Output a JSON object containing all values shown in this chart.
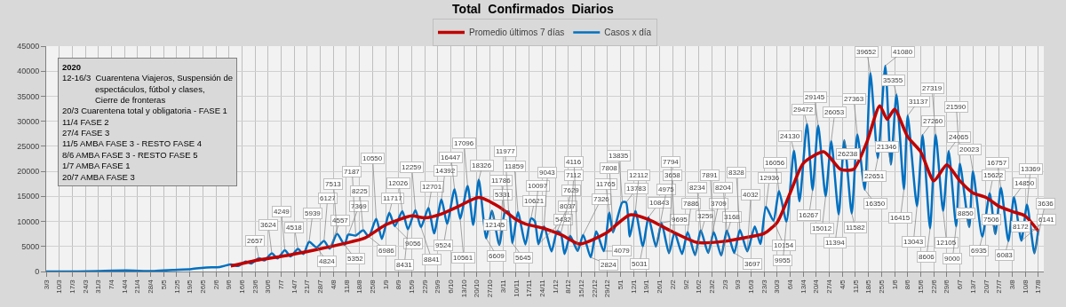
{
  "chart_data": {
    "type": "line",
    "title": "Total  Confirmados  Diarios",
    "annotations": [
      "2020\n12-16/3  Cuarentena Viajeros, Suspensión de\n              espectáculos, fútbol y clases,\n              Cierre de fronteras\n20/3 Cuarentena total y obligatoria - FASE 1\n11/4 FASE 2\n27/4 FASE 3\n11/5 AMBA FASE 3 - RESTO FASE 4\n8/6 AMBA FASE 3 - RESTO FASE 5\n1/7 AMBA FASE 1\n20/7 AMBA FASE 3"
    ],
    "series": [
      {
        "name": "Promedio últimos 7 días",
        "color": "#c00000",
        "x": [
          "2020-06-10",
          "2020-06-25",
          "2020-07-10",
          "2020-07-25",
          "2020-08-10",
          "2020-08-21",
          "2020-09-01",
          "2020-09-15",
          "2020-09-22",
          "2020-10-01",
          "2020-10-10",
          "2020-10-21",
          "2020-11-01",
          "2020-11-10",
          "2020-11-15",
          "2020-11-25",
          "2020-12-05",
          "2020-12-14",
          "2020-12-28",
          "2021-01-10",
          "2021-01-20",
          "2021-02-01",
          "2021-02-15",
          "2021-03-01",
          "2021-03-15",
          "2021-03-23",
          "2021-03-30",
          "2021-04-06",
          "2021-04-13",
          "2021-04-24",
          "2021-05-03",
          "2021-05-10",
          "2021-05-17",
          "2021-05-24",
          "2021-05-28",
          "2021-06-01",
          "2021-06-08",
          "2021-06-15",
          "2021-06-22",
          "2021-06-29",
          "2021-07-06",
          "2021-07-13",
          "2021-07-20",
          "2021-07-27",
          "2021-08-03",
          "2021-08-10",
          "2021-08-17"
        ],
        "values": [
          1100,
          2300,
          3200,
          4300,
          5600,
          6700,
          9300,
          11100,
          10700,
          11500,
          13000,
          14800,
          12900,
          10400,
          9500,
          8600,
          7200,
          5500,
          7600,
          11300,
          10400,
          8100,
          5800,
          6000,
          6900,
          7600,
          9800,
          15700,
          21600,
          23900,
          20400,
          20400,
          25700,
          33100,
          30400,
          32400,
          26900,
          23900,
          18100,
          21300,
          18100,
          15700,
          14800,
          13000,
          12000,
          11100,
          8100
        ]
      },
      {
        "name": "Casos x día",
        "color": "#0070c0",
        "x": [
          "2020-03-03",
          "2020-03-20",
          "2020-04-01",
          "2020-04-15",
          "2020-04-30",
          "2020-05-10",
          "2020-05-20",
          "2020-05-28",
          "2020-06-04",
          "2020-06-10",
          "2020-06-14",
          "2020-06-18",
          "2020-06-21",
          "2020-06-25",
          "2020-06-28",
          "2020-07-02",
          "2020-07-05",
          "2020-07-09",
          "2020-07-12",
          "2020-07-16",
          "2020-07-19",
          "2020-07-22",
          "2020-07-26",
          "2020-07-30",
          "2020-08-02",
          "2020-08-06",
          "2020-08-10",
          "2020-08-12",
          "2020-08-16",
          "2020-08-20",
          "2020-08-23",
          "2020-08-27",
          "2020-08-30",
          "2020-09-03",
          "2020-09-06",
          "2020-09-10",
          "2020-09-13",
          "2020-09-17",
          "2020-09-20",
          "2020-09-24",
          "2020-09-27",
          "2020-10-01",
          "2020-10-04",
          "2020-10-08",
          "2020-10-11",
          "2020-10-15",
          "2020-10-18",
          "2020-10-21",
          "2020-10-25",
          "2020-10-28",
          "2020-11-01",
          "2020-11-04",
          "2020-11-06",
          "2020-11-08",
          "2020-11-11",
          "2020-11-15",
          "2020-11-18",
          "2020-11-20",
          "2020-11-22",
          "2020-11-25",
          "2020-11-29",
          "2020-12-02",
          "2020-12-04",
          "2020-12-06",
          "2020-12-09",
          "2020-12-13",
          "2020-12-16",
          "2020-12-20",
          "2020-12-23",
          "2020-12-27",
          "2020-12-30",
          "2021-01-01",
          "2021-01-06",
          "2021-01-08",
          "2021-01-10",
          "2021-01-13",
          "2021-01-17",
          "2021-01-20",
          "2021-01-24",
          "2021-01-27",
          "2021-01-31",
          "2021-02-03",
          "2021-02-07",
          "2021-02-10",
          "2021-02-14",
          "2021-02-17",
          "2021-02-21",
          "2021-02-24",
          "2021-02-28",
          "2021-03-03",
          "2021-03-07",
          "2021-03-10",
          "2021-03-14",
          "2021-03-18",
          "2021-03-21",
          "2021-03-24",
          "2021-03-28",
          "2021-03-31",
          "2021-04-04",
          "2021-04-08",
          "2021-04-11",
          "2021-04-15",
          "2021-04-18",
          "2021-04-21",
          "2021-04-25",
          "2021-04-28",
          "2021-05-02",
          "2021-05-05",
          "2021-05-09",
          "2021-05-12",
          "2021-05-16",
          "2021-05-19",
          "2021-05-23",
          "2021-05-27",
          "2021-05-30",
          "2021-06-02",
          "2021-06-06",
          "2021-06-08",
          "2021-06-13",
          "2021-06-16",
          "2021-06-20",
          "2021-06-23",
          "2021-06-27",
          "2021-06-30",
          "2021-07-04",
          "2021-07-06",
          "2021-07-11",
          "2021-07-13",
          "2021-07-18",
          "2021-07-22",
          "2021-07-25",
          "2021-07-28",
          "2021-08-01",
          "2021-08-04",
          "2021-08-08",
          "2021-08-11",
          "2021-08-15",
          "2021-08-17"
        ],
        "values": [
          0,
          0,
          100,
          200,
          100,
          300,
          500,
          800,
          900,
          1400,
          1100,
          2000,
          1600,
          2657,
          2200,
          3624,
          2600,
          4249,
          3000,
          4518,
          3500,
          5939,
          4824,
          6127,
          4557,
          7513,
          5352,
          7369,
          7187,
          8225,
          6986,
          10550,
          6500,
          11717,
          9056,
          12026,
          8431,
          12259,
          8841,
          12701,
          7600,
          14392,
          9524,
          16447,
          10561,
          17096,
          9300,
          18326,
          6609,
          12145,
          5331,
          11786,
          11977,
          5645,
          11859,
          5400,
          10621,
          10097,
          5432,
          9043,
          4000,
          8037,
          7629,
          3500,
          7112,
          4116,
          7326,
          2824,
          8000,
          4079,
          11765,
          7808,
          13835,
          13783,
          7000,
          12112,
          5031,
          10843,
          4975,
          9695,
          3658,
          7794,
          3500,
          7886,
          3259,
          8234,
          3709,
          7891,
          3168,
          8204,
          3697,
          8328,
          4032,
          9000,
          5500,
          12936,
          10154,
          16056,
          9955,
          24130,
          14000,
          29472,
          16267,
          29145,
          15012,
          26053,
          11394,
          26238,
          11582,
          27363,
          16350,
          39652,
          22651,
          41080,
          21346,
          35355,
          16415,
          31137,
          13043,
          27260,
          8606,
          27319,
          12105,
          24065,
          9000,
          21590,
          8850,
          20023,
          6935,
          15622,
          7506,
          16757,
          6083,
          14850,
          6141,
          13369,
          3636,
          8172
        ],
        "value_labels": [
          null,
          null,
          null,
          null,
          null,
          null,
          null,
          null,
          null,
          null,
          null,
          null,
          null,
          "2657",
          null,
          "3624",
          null,
          "4249",
          null,
          "4518",
          null,
          "5939",
          "4824",
          "6127",
          "4557",
          "7513",
          "5352",
          "7369",
          "7187",
          "8225",
          "6986",
          "10550",
          null,
          "11717",
          "9056",
          "12026",
          "8431",
          "12259",
          "8841",
          "12701",
          null,
          "14392",
          "9524",
          "16447",
          "10561",
          "17096",
          null,
          "18326",
          "6609",
          "12145",
          "5331",
          "11786",
          "11977",
          "5645",
          "11859",
          null,
          "10621",
          "10097",
          "5432",
          "9043",
          null,
          "8037",
          "7629",
          null,
          "7112",
          "4116",
          "7326",
          "2824",
          null,
          "4079",
          "11765",
          "7808",
          "13835",
          "13783",
          null,
          "12112",
          "5031",
          "10843",
          "4975",
          "9695",
          "3658",
          "7794",
          null,
          "7886",
          "3259",
          "8234",
          "3709",
          "7891",
          "3168",
          "8204",
          "3697",
          "8328",
          "4032",
          null,
          null,
          "12936",
          "10154",
          "16056",
          "9955",
          "24130",
          null,
          "29472",
          "16267",
          "29145",
          "15012",
          "26053",
          "11394",
          "26238",
          "11582",
          "27363",
          "16350",
          "39652",
          "22651",
          "41080",
          "21346",
          "35355",
          "16415",
          "31137",
          "13043",
          "27260",
          "8606",
          "27319",
          "12105",
          "24065",
          "9000",
          "21590",
          "8850",
          "20023",
          "6935",
          "15622",
          "7506",
          "16757",
          "6083",
          "14850",
          "6141",
          "13369",
          "3636",
          "8172"
        ]
      }
    ],
    "xlim": [
      "2020-03-03",
      "2021-08-20"
    ],
    "xticks": [
      {
        "value": "2020-03-03",
        "label": "3/3"
      },
      {
        "value": "2020-03-10",
        "label": "10/3"
      },
      {
        "value": "2020-03-17",
        "label": "17/3"
      },
      {
        "value": "2020-03-24",
        "label": "24/3"
      },
      {
        "value": "2020-03-31",
        "label": "31/3"
      },
      {
        "value": "2020-04-07",
        "label": "7/4"
      },
      {
        "value": "2020-04-14",
        "label": "14/4"
      },
      {
        "value": "2020-04-21",
        "label": "21/4"
      },
      {
        "value": "2020-04-28",
        "label": "28/4"
      },
      {
        "value": "2020-05-05",
        "label": "5/5"
      },
      {
        "value": "2020-05-12",
        "label": "12/5"
      },
      {
        "value": "2020-05-19",
        "label": "19/5"
      },
      {
        "value": "2020-05-26",
        "label": "26/5"
      },
      {
        "value": "2020-06-02",
        "label": "2/6"
      },
      {
        "value": "2020-06-09",
        "label": "9/6"
      },
      {
        "value": "2020-06-16",
        "label": "16/6"
      },
      {
        "value": "2020-06-23",
        "label": "23/6"
      },
      {
        "value": "2020-06-30",
        "label": "30/6"
      },
      {
        "value": "2020-07-07",
        "label": "7/7"
      },
      {
        "value": "2020-07-14",
        "label": "14/7"
      },
      {
        "value": "2020-07-21",
        "label": "21/7"
      },
      {
        "value": "2020-07-28",
        "label": "28/7"
      },
      {
        "value": "2020-08-04",
        "label": "4/8"
      },
      {
        "value": "2020-08-11",
        "label": "11/8"
      },
      {
        "value": "2020-08-18",
        "label": "18/8"
      },
      {
        "value": "2020-08-25",
        "label": "25/8"
      },
      {
        "value": "2020-09-01",
        "label": "1/9"
      },
      {
        "value": "2020-09-08",
        "label": "8/9"
      },
      {
        "value": "2020-09-15",
        "label": "15/9"
      },
      {
        "value": "2020-09-22",
        "label": "22/9"
      },
      {
        "value": "2020-09-29",
        "label": "29/9"
      },
      {
        "value": "2020-10-06",
        "label": "6/10"
      },
      {
        "value": "2020-10-13",
        "label": "13/10"
      },
      {
        "value": "2020-10-20",
        "label": "20/10"
      },
      {
        "value": "2020-10-27",
        "label": "27/10"
      },
      {
        "value": "2020-11-03",
        "label": "3/11"
      },
      {
        "value": "2020-11-10",
        "label": "10/11"
      },
      {
        "value": "2020-11-17",
        "label": "17/11"
      },
      {
        "value": "2020-11-24",
        "label": "24/11"
      },
      {
        "value": "2020-12-01",
        "label": "1/12"
      },
      {
        "value": "2020-12-08",
        "label": "8/12"
      },
      {
        "value": "2020-12-15",
        "label": "15/12"
      },
      {
        "value": "2020-12-22",
        "label": "22/12"
      },
      {
        "value": "2020-12-29",
        "label": "29/12"
      },
      {
        "value": "2021-01-05",
        "label": "5/1"
      },
      {
        "value": "2021-01-12",
        "label": "12/1"
      },
      {
        "value": "2021-01-19",
        "label": "19/1"
      },
      {
        "value": "2021-01-26",
        "label": "26/1"
      },
      {
        "value": "2021-02-02",
        "label": "2/2"
      },
      {
        "value": "2021-02-09",
        "label": "9/2"
      },
      {
        "value": "2021-02-16",
        "label": "16/2"
      },
      {
        "value": "2021-02-23",
        "label": "23/2"
      },
      {
        "value": "2021-03-02",
        "label": "2/3"
      },
      {
        "value": "2021-03-09",
        "label": "9/3"
      },
      {
        "value": "2021-03-16",
        "label": "16/3"
      },
      {
        "value": "2021-03-23",
        "label": "23/3"
      },
      {
        "value": "2021-03-30",
        "label": "30/3"
      },
      {
        "value": "2021-04-06",
        "label": "6/4"
      },
      {
        "value": "2021-04-13",
        "label": "13/4"
      },
      {
        "value": "2021-04-20",
        "label": "20/4"
      },
      {
        "value": "2021-04-27",
        "label": "27/4"
      },
      {
        "value": "2021-05-04",
        "label": "4/5"
      },
      {
        "value": "2021-05-11",
        "label": "11/5"
      },
      {
        "value": "2021-05-18",
        "label": "18/5"
      },
      {
        "value": "2021-05-25",
        "label": "25/5"
      },
      {
        "value": "2021-06-01",
        "label": "1/6"
      },
      {
        "value": "2021-06-08",
        "label": "8/6"
      },
      {
        "value": "2021-06-15",
        "label": "15/6"
      },
      {
        "value": "2021-06-22",
        "label": "22/6"
      },
      {
        "value": "2021-06-29",
        "label": "29/6"
      },
      {
        "value": "2021-07-06",
        "label": "6/7"
      },
      {
        "value": "2021-07-13",
        "label": "13/7"
      },
      {
        "value": "2021-07-20",
        "label": "20/7"
      },
      {
        "value": "2021-07-27",
        "label": "27/7"
      },
      {
        "value": "2021-08-03",
        "label": "3/8"
      },
      {
        "value": "2021-08-10",
        "label": "10/8"
      },
      {
        "value": "2021-08-17",
        "label": "17/8"
      }
    ],
    "ylim": [
      0,
      45000
    ],
    "yticks": [
      0,
      5000,
      10000,
      15000,
      20000,
      25000,
      30000,
      35000,
      40000,
      45000
    ],
    "grid": true,
    "legend": "top",
    "marker": "none",
    "line_style": "solid"
  }
}
